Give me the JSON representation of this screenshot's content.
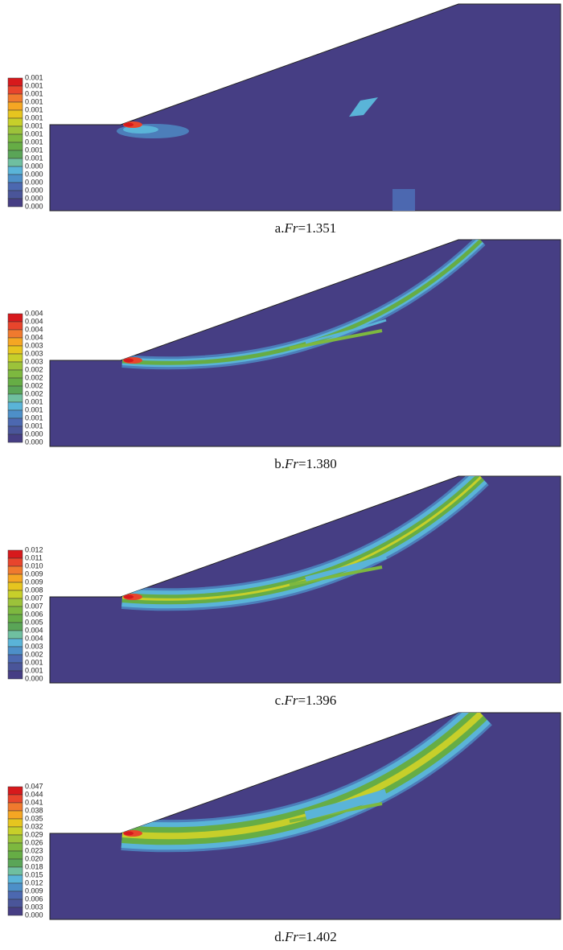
{
  "panels": [
    {
      "legend": [
        "0.001",
        "0.001",
        "0.001",
        "0.001",
        "0.001",
        "0.001",
        "0.001",
        "0.001",
        "0.001",
        "0.001",
        "0.001",
        "0.000",
        "0.000",
        "0.000",
        "0.000",
        "0.000",
        "0.000"
      ],
      "caption": {
        "label": "a.",
        "symbol": "Fr",
        "value": "=1.351"
      }
    },
    {
      "legend": [
        "0.004",
        "0.004",
        "0.004",
        "0.004",
        "0.003",
        "0.003",
        "0.003",
        "0.002",
        "0.002",
        "0.002",
        "0.002",
        "0.001",
        "0.001",
        "0.001",
        "0.001",
        "0.000",
        "0.000"
      ],
      "caption": {
        "label": "b.",
        "symbol": "Fr",
        "value": "=1.380"
      }
    },
    {
      "legend": [
        "0.012",
        "0.011",
        "0.010",
        "0.009",
        "0.009",
        "0.008",
        "0.007",
        "0.007",
        "0.006",
        "0.005",
        "0.004",
        "0.004",
        "0.003",
        "0.002",
        "0.001",
        "0.001",
        "0.000"
      ],
      "caption": {
        "label": "c.",
        "symbol": "Fr",
        "value": "=1.396"
      }
    },
    {
      "legend": [
        "0.047",
        "0.044",
        "0.041",
        "0.038",
        "0.035",
        "0.032",
        "0.029",
        "0.026",
        "0.023",
        "0.020",
        "0.018",
        "0.015",
        "0.012",
        "0.009",
        "0.006",
        "0.003",
        "0.000"
      ],
      "caption": {
        "label": "d.",
        "symbol": "Fr",
        "value": "=1.402"
      }
    }
  ]
}
